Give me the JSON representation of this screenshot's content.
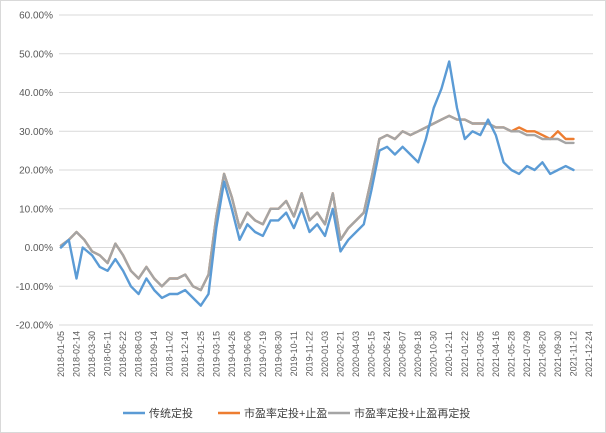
{
  "chart_data": {
    "type": "line",
    "title": "",
    "xlabel": "",
    "ylabel": "",
    "ylim": [
      -0.2,
      0.6
    ],
    "y_ticks": [
      "-20.00%",
      "-10.00%",
      "0.00%",
      "10.00%",
      "20.00%",
      "30.00%",
      "40.00%",
      "50.00%",
      "60.00%"
    ],
    "y_tick_values": [
      -0.2,
      -0.1,
      0.0,
      0.1,
      0.2,
      0.3,
      0.4,
      0.5,
      0.6
    ],
    "x_ticks": [
      "2018-01-05",
      "2018-02-14",
      "2018-03-30",
      "2018-05-11",
      "2018-06-22",
      "2018-08-03",
      "2018-09-14",
      "2018-11-02",
      "2018-12-14",
      "2019-01-25",
      "2019-03-15",
      "2019-04-26",
      "2019-06-06",
      "2019-07-19",
      "2019-08-30",
      "2019-10-11",
      "2019-11-22",
      "2020-01-03",
      "2020-02-21",
      "2020-04-03",
      "2020-05-15",
      "2020-06-24",
      "2020-08-07",
      "2020-09-18",
      "2020-10-30",
      "2020-12-11",
      "2021-01-22",
      "2021-03-05",
      "2021-04-16",
      "2021-05-28",
      "2021-07-09",
      "2021-08-20",
      "2021-09-30",
      "2021-11-12",
      "2021-12-24"
    ],
    "grid": true,
    "legend_position": "bottom",
    "series": [
      {
        "name": "传统定投",
        "color": "#5b9bd5",
        "points": [
          [
            0,
            0.0
          ],
          [
            0.5,
            0.02
          ],
          [
            1,
            -0.08
          ],
          [
            1.4,
            0.0
          ],
          [
            2,
            -0.02
          ],
          [
            2.5,
            -0.05
          ],
          [
            3,
            -0.06
          ],
          [
            3.5,
            -0.03
          ],
          [
            4,
            -0.06
          ],
          [
            4.5,
            -0.1
          ],
          [
            5,
            -0.12
          ],
          [
            5.5,
            -0.08
          ],
          [
            6,
            -0.11
          ],
          [
            6.5,
            -0.13
          ],
          [
            7,
            -0.12
          ],
          [
            7.5,
            -0.12
          ],
          [
            8,
            -0.11
          ],
          [
            8.5,
            -0.13
          ],
          [
            9,
            -0.15
          ],
          [
            9.5,
            -0.12
          ],
          [
            10,
            0.05
          ],
          [
            10.5,
            0.17
          ],
          [
            11,
            0.1
          ],
          [
            11.5,
            0.02
          ],
          [
            12,
            0.06
          ],
          [
            12.5,
            0.04
          ],
          [
            13,
            0.03
          ],
          [
            13.5,
            0.07
          ],
          [
            14,
            0.07
          ],
          [
            14.5,
            0.09
          ],
          [
            15,
            0.05
          ],
          [
            15.5,
            0.1
          ],
          [
            16,
            0.04
          ],
          [
            16.5,
            0.06
          ],
          [
            17,
            0.03
          ],
          [
            17.5,
            0.1
          ],
          [
            18,
            -0.01
          ],
          [
            18.5,
            0.02
          ],
          [
            19,
            0.04
          ],
          [
            19.5,
            0.06
          ],
          [
            20,
            0.15
          ],
          [
            20.5,
            0.25
          ],
          [
            21,
            0.26
          ],
          [
            21.5,
            0.24
          ],
          [
            22,
            0.26
          ],
          [
            22.5,
            0.24
          ],
          [
            23,
            0.22
          ],
          [
            23.5,
            0.28
          ],
          [
            24,
            0.36
          ],
          [
            24.5,
            0.41
          ],
          [
            25,
            0.48
          ],
          [
            25.5,
            0.36
          ],
          [
            26,
            0.28
          ],
          [
            26.5,
            0.3
          ],
          [
            27,
            0.29
          ],
          [
            27.5,
            0.33
          ],
          [
            28,
            0.29
          ],
          [
            28.5,
            0.22
          ],
          [
            29,
            0.2
          ],
          [
            29.5,
            0.19
          ],
          [
            30,
            0.21
          ],
          [
            30.5,
            0.2
          ],
          [
            31,
            0.22
          ],
          [
            31.5,
            0.19
          ],
          [
            32,
            0.2
          ],
          [
            32.5,
            0.21
          ],
          [
            33,
            0.2
          ]
        ]
      },
      {
        "name": "市盈率定投+止盈",
        "color": "#ed7d31",
        "points": [
          [
            0,
            0.005
          ],
          [
            0.5,
            0.02
          ],
          [
            1,
            0.04
          ],
          [
            1.5,
            0.02
          ],
          [
            2,
            -0.01
          ],
          [
            2.5,
            -0.02
          ],
          [
            3,
            -0.04
          ],
          [
            3.5,
            0.01
          ],
          [
            4,
            -0.02
          ],
          [
            4.5,
            -0.06
          ],
          [
            5,
            -0.08
          ],
          [
            5.5,
            -0.05
          ],
          [
            6,
            -0.08
          ],
          [
            6.5,
            -0.1
          ],
          [
            7,
            -0.08
          ],
          [
            7.5,
            -0.08
          ],
          [
            8,
            -0.07
          ],
          [
            8.5,
            -0.1
          ],
          [
            9,
            -0.11
          ],
          [
            9.5,
            -0.07
          ],
          [
            10,
            0.08
          ],
          [
            10.5,
            0.19
          ],
          [
            11,
            0.13
          ],
          [
            11.5,
            0.05
          ],
          [
            12,
            0.09
          ],
          [
            12.5,
            0.07
          ],
          [
            13,
            0.06
          ],
          [
            13.5,
            0.1
          ],
          [
            14,
            0.1
          ],
          [
            14.5,
            0.12
          ],
          [
            15,
            0.08
          ],
          [
            15.5,
            0.14
          ],
          [
            16,
            0.07
          ],
          [
            16.5,
            0.09
          ],
          [
            17,
            0.06
          ],
          [
            17.5,
            0.14
          ],
          [
            18,
            0.02
          ],
          [
            18.5,
            0.05
          ],
          [
            19,
            0.07
          ],
          [
            19.5,
            0.09
          ],
          [
            20,
            0.18
          ],
          [
            20.5,
            0.28
          ],
          [
            21,
            0.29
          ],
          [
            21.5,
            0.28
          ],
          [
            22,
            0.3
          ],
          [
            22.5,
            0.29
          ],
          [
            23,
            0.3
          ],
          [
            23.5,
            0.31
          ],
          [
            24,
            0.32
          ],
          [
            24.5,
            0.33
          ],
          [
            25,
            0.34
          ],
          [
            25.5,
            0.33
          ],
          [
            26,
            0.33
          ],
          [
            26.5,
            0.32
          ],
          [
            27,
            0.32
          ],
          [
            27.5,
            0.32
          ],
          [
            28,
            0.31
          ],
          [
            28.5,
            0.31
          ],
          [
            29,
            0.3
          ],
          [
            29.5,
            0.31
          ],
          [
            30,
            0.3
          ],
          [
            30.5,
            0.3
          ],
          [
            31,
            0.29
          ],
          [
            31.5,
            0.28
          ],
          [
            32,
            0.3
          ],
          [
            32.5,
            0.28
          ],
          [
            33,
            0.28
          ]
        ]
      },
      {
        "name": "市盈率定投+止盈再定投",
        "color": "#a5a5a5",
        "points": [
          [
            0,
            0.005
          ],
          [
            0.5,
            0.02
          ],
          [
            1,
            0.04
          ],
          [
            1.5,
            0.02
          ],
          [
            2,
            -0.01
          ],
          [
            2.5,
            -0.02
          ],
          [
            3,
            -0.04
          ],
          [
            3.5,
            0.01
          ],
          [
            4,
            -0.02
          ],
          [
            4.5,
            -0.06
          ],
          [
            5,
            -0.08
          ],
          [
            5.5,
            -0.05
          ],
          [
            6,
            -0.08
          ],
          [
            6.5,
            -0.1
          ],
          [
            7,
            -0.08
          ],
          [
            7.5,
            -0.08
          ],
          [
            8,
            -0.07
          ],
          [
            8.5,
            -0.1
          ],
          [
            9,
            -0.11
          ],
          [
            9.5,
            -0.07
          ],
          [
            10,
            0.08
          ],
          [
            10.5,
            0.19
          ],
          [
            11,
            0.13
          ],
          [
            11.5,
            0.05
          ],
          [
            12,
            0.09
          ],
          [
            12.5,
            0.07
          ],
          [
            13,
            0.06
          ],
          [
            13.5,
            0.1
          ],
          [
            14,
            0.1
          ],
          [
            14.5,
            0.12
          ],
          [
            15,
            0.08
          ],
          [
            15.5,
            0.14
          ],
          [
            16,
            0.07
          ],
          [
            16.5,
            0.09
          ],
          [
            17,
            0.06
          ],
          [
            17.5,
            0.14
          ],
          [
            18,
            0.02
          ],
          [
            18.5,
            0.05
          ],
          [
            19,
            0.07
          ],
          [
            19.5,
            0.09
          ],
          [
            20,
            0.18
          ],
          [
            20.5,
            0.28
          ],
          [
            21,
            0.29
          ],
          [
            21.5,
            0.28
          ],
          [
            22,
            0.3
          ],
          [
            22.5,
            0.29
          ],
          [
            23,
            0.3
          ],
          [
            23.5,
            0.31
          ],
          [
            24,
            0.32
          ],
          [
            24.5,
            0.33
          ],
          [
            25,
            0.34
          ],
          [
            25.5,
            0.33
          ],
          [
            26,
            0.33
          ],
          [
            26.5,
            0.32
          ],
          [
            27,
            0.32
          ],
          [
            27.5,
            0.32
          ],
          [
            28,
            0.31
          ],
          [
            28.5,
            0.31
          ],
          [
            29,
            0.3
          ],
          [
            29.5,
            0.3
          ],
          [
            30,
            0.29
          ],
          [
            30.5,
            0.29
          ],
          [
            31,
            0.28
          ],
          [
            31.5,
            0.28
          ],
          [
            32,
            0.28
          ],
          [
            32.5,
            0.27
          ],
          [
            33,
            0.27
          ]
        ]
      }
    ]
  }
}
